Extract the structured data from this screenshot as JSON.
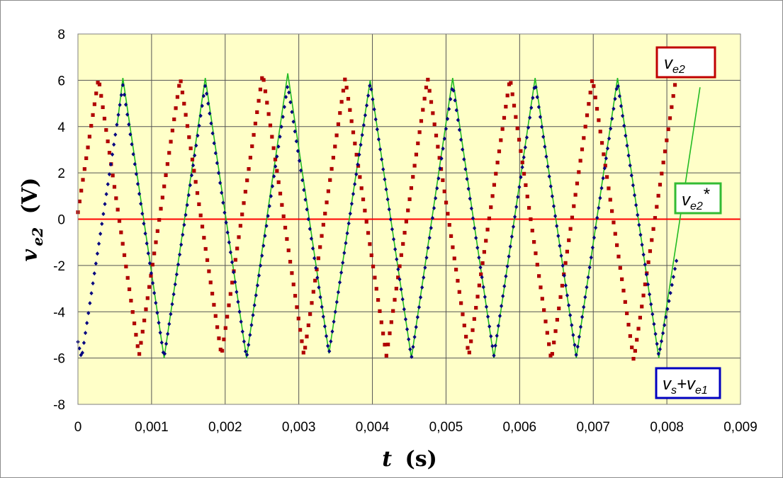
{
  "chart_data": {
    "type": "line",
    "title": "",
    "xlabel": "t",
    "xlabel_unit": "(s)",
    "ylabel": "v",
    "ylabel_sub": "e2",
    "ylabel_unit": "(V)",
    "xlim": [
      0,
      0.009
    ],
    "ylim": [
      -8,
      8
    ],
    "x_ticks": [
      0,
      0.001,
      0.002,
      0.003,
      0.004,
      0.005,
      0.006,
      0.007,
      0.008,
      0.009
    ],
    "x_tick_labels": [
      "0",
      "0,001",
      "0,002",
      "0,003",
      "0,004",
      "0,005",
      "0,006",
      "0,007",
      "0,008",
      "0,009"
    ],
    "y_ticks": [
      -8,
      -6,
      -4,
      -2,
      0,
      2,
      4,
      6,
      8
    ],
    "y_tick_labels": [
      "-8",
      "-6",
      "-4",
      "-2",
      "0",
      "2",
      "4",
      "6",
      "8"
    ],
    "grid": true,
    "plot_background": "#ffffc8",
    "zero_line_color": "#ff0000",
    "series": [
      {
        "key": "ve2",
        "legend_main": "v",
        "legend_sub": "e2",
        "legend_suffix": "",
        "color": "#b00000",
        "border_color": "#c00000",
        "marker": "square",
        "legend_position": "top-right",
        "x": [
          0.0,
          0.00028,
          0.00083,
          0.00139,
          0.00195,
          0.00251,
          0.00307,
          0.00363,
          0.00419,
          0.00475,
          0.00531,
          0.00587,
          0.00643,
          0.00699,
          0.00755,
          0.00811
        ],
        "y": [
          0.3,
          6.1,
          -5.9,
          6.1,
          -5.9,
          6.3,
          -5.9,
          6.1,
          -5.9,
          6.1,
          -5.9,
          6.1,
          -6.1,
          6.1,
          -6.1,
          5.8
        ]
      },
      {
        "key": "vs_ve1",
        "legend_main": "v",
        "legend_sub": "s",
        "legend_plus": "+v",
        "legend_sub2": "e1",
        "color": "#000080",
        "border_color": "#0000c0",
        "marker": "diamond",
        "legend_position": "bottom-right",
        "x": [
          0.0,
          5e-05,
          0.00061,
          0.00117,
          0.00173,
          0.00229,
          0.00285,
          0.00341,
          0.00397,
          0.00453,
          0.00509,
          0.00565,
          0.00621,
          0.00677,
          0.00733,
          0.00789,
          0.00813
        ],
        "y": [
          -5.3,
          -6.0,
          5.8,
          -6.0,
          5.8,
          -6.0,
          5.8,
          -5.8,
          5.9,
          -6.0,
          5.8,
          -5.9,
          5.9,
          -5.9,
          5.9,
          -5.9,
          -1.8
        ]
      },
      {
        "key": "ve2_star",
        "legend_main": "v",
        "legend_sub": "e2",
        "legend_suffix": "*",
        "color": "#22bb22",
        "border_color": "#33bb33",
        "marker": "none",
        "legend_position": "right",
        "x": [
          0.00053,
          0.00061,
          0.00117,
          0.00173,
          0.00229,
          0.00285,
          0.00341,
          0.00397,
          0.00453,
          0.00509,
          0.00565,
          0.00621,
          0.00677,
          0.00733,
          0.00789,
          0.00845
        ],
        "y": [
          4.0,
          6.1,
          -6.0,
          6.1,
          -6.0,
          6.3,
          -5.8,
          6.0,
          -6.0,
          6.1,
          -6.0,
          6.1,
          -6.0,
          6.1,
          -6.0,
          5.7
        ]
      }
    ]
  }
}
